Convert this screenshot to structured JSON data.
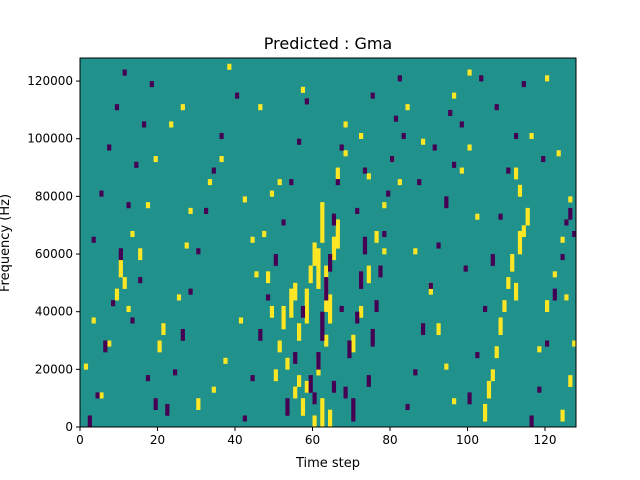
{
  "chart_data": {
    "type": "heatmap",
    "title": "Predicted : Gma",
    "xlabel": "Time step",
    "ylabel": "Frequency (Hz)",
    "xlim": [
      0,
      128
    ],
    "ylim": [
      0,
      128000
    ],
    "x_ticks": [
      0,
      20,
      40,
      60,
      80,
      100,
      120
    ],
    "y_ticks": [
      0,
      20000,
      40000,
      60000,
      80000,
      100000,
      120000
    ],
    "x_tick_labels": [
      "0",
      "20",
      "40",
      "60",
      "80",
      "100",
      "120"
    ],
    "y_tick_labels": [
      "0",
      "20000",
      "40000",
      "60000",
      "80000",
      "100000",
      "120000"
    ],
    "n_time": 128,
    "n_freq": 128,
    "grid": false,
    "colors": {
      "background": "#21918c",
      "high": "#fde725",
      "low": "#440154"
    },
    "notes_legend": "background cells = mid value; high cells = yellow; low cells = dark purple",
    "high_cells": [
      [
        60,
        0,
        4
      ],
      [
        62,
        0,
        10
      ],
      [
        64,
        0,
        6
      ],
      [
        55,
        10,
        4
      ],
      [
        56,
        14,
        4
      ],
      [
        57,
        4,
        6
      ],
      [
        58,
        12,
        4
      ],
      [
        61,
        18,
        6
      ],
      [
        63,
        28,
        4
      ],
      [
        52,
        34,
        8
      ],
      [
        53,
        20,
        4
      ],
      [
        54,
        38,
        10
      ],
      [
        55,
        44,
        6
      ],
      [
        56,
        30,
        6
      ],
      [
        58,
        36,
        12
      ],
      [
        59,
        50,
        6
      ],
      [
        60,
        56,
        8
      ],
      [
        61,
        48,
        14
      ],
      [
        62,
        64,
        14
      ],
      [
        63,
        40,
        16
      ],
      [
        64,
        36,
        10
      ],
      [
        65,
        58,
        8
      ],
      [
        66,
        62,
        10
      ],
      [
        50,
        16,
        4
      ],
      [
        51,
        26,
        4
      ],
      [
        49,
        38,
        4
      ],
      [
        48,
        50,
        4
      ],
      [
        104,
        2,
        6
      ],
      [
        105,
        10,
        6
      ],
      [
        106,
        16,
        4
      ],
      [
        107,
        24,
        4
      ],
      [
        108,
        32,
        6
      ],
      [
        109,
        40,
        4
      ],
      [
        110,
        48,
        4
      ],
      [
        111,
        54,
        6
      ],
      [
        112,
        44,
        6
      ],
      [
        113,
        60,
        8
      ],
      [
        114,
        66,
        4
      ],
      [
        115,
        70,
        6
      ],
      [
        113,
        80,
        4
      ],
      [
        112,
        86,
        4
      ],
      [
        10,
        52,
        6
      ],
      [
        11,
        48,
        4
      ],
      [
        12,
        40,
        2
      ],
      [
        20,
        26,
        4
      ],
      [
        21,
        32,
        4
      ],
      [
        25,
        44,
        2
      ],
      [
        27,
        62,
        2
      ],
      [
        28,
        74,
        2
      ],
      [
        30,
        6,
        4
      ],
      [
        34,
        12,
        2
      ],
      [
        37,
        22,
        2
      ],
      [
        41,
        36,
        2
      ],
      [
        45,
        52,
        2
      ],
      [
        47,
        66,
        2
      ],
      [
        49,
        80,
        2
      ],
      [
        51,
        84,
        2
      ],
      [
        70,
        26,
        6
      ],
      [
        72,
        38,
        4
      ],
      [
        74,
        50,
        6
      ],
      [
        76,
        64,
        4
      ],
      [
        78,
        76,
        2
      ],
      [
        80,
        92,
        2
      ],
      [
        82,
        84,
        2
      ],
      [
        86,
        60,
        2
      ],
      [
        90,
        46,
        4
      ],
      [
        92,
        32,
        4
      ],
      [
        94,
        20,
        2
      ],
      [
        96,
        8,
        2
      ],
      [
        98,
        88,
        2
      ],
      [
        100,
        96,
        2
      ],
      [
        102,
        72,
        2
      ],
      [
        118,
        26,
        2
      ],
      [
        120,
        40,
        4
      ],
      [
        122,
        52,
        2
      ],
      [
        124,
        64,
        2
      ],
      [
        126,
        78,
        2
      ],
      [
        5,
        10,
        2
      ],
      [
        7,
        28,
        2
      ],
      [
        9,
        44,
        4
      ],
      [
        15,
        58,
        4
      ],
      [
        17,
        76,
        2
      ],
      [
        19,
        92,
        2
      ],
      [
        23,
        104,
        2
      ],
      [
        26,
        110,
        2
      ],
      [
        38,
        124,
        2
      ],
      [
        46,
        110,
        2
      ],
      [
        57,
        116,
        2
      ],
      [
        68,
        104,
        2
      ],
      [
        72,
        100,
        2
      ],
      [
        84,
        110,
        2
      ],
      [
        88,
        98,
        2
      ],
      [
        96,
        114,
        2
      ],
      [
        100,
        122,
        2
      ],
      [
        116,
        100,
        2
      ],
      [
        120,
        120,
        2
      ],
      [
        124,
        2,
        4
      ],
      [
        126,
        14,
        4
      ],
      [
        127,
        28,
        2
      ],
      [
        125,
        44,
        2
      ],
      [
        123,
        94,
        2
      ],
      [
        3,
        36,
        2
      ],
      [
        1,
        20,
        2
      ],
      [
        13,
        66,
        2
      ],
      [
        33,
        84,
        2
      ],
      [
        36,
        92,
        2
      ],
      [
        42,
        78,
        2
      ],
      [
        44,
        64,
        2
      ],
      [
        66,
        86,
        4
      ],
      [
        68,
        94,
        2
      ],
      [
        74,
        86,
        2
      ],
      [
        78,
        60,
        2
      ]
    ],
    "low_cells": [
      [
        2,
        0,
        4
      ],
      [
        4,
        10,
        2
      ],
      [
        6,
        26,
        4
      ],
      [
        8,
        42,
        2
      ],
      [
        10,
        58,
        4
      ],
      [
        12,
        76,
        2
      ],
      [
        14,
        90,
        2
      ],
      [
        16,
        104,
        2
      ],
      [
        18,
        118,
        2
      ],
      [
        22,
        4,
        4
      ],
      [
        24,
        18,
        2
      ],
      [
        26,
        30,
        4
      ],
      [
        28,
        46,
        2
      ],
      [
        30,
        60,
        2
      ],
      [
        32,
        74,
        2
      ],
      [
        34,
        88,
        2
      ],
      [
        36,
        100,
        2
      ],
      [
        40,
        114,
        2
      ],
      [
        42,
        2,
        2
      ],
      [
        44,
        16,
        2
      ],
      [
        46,
        30,
        4
      ],
      [
        48,
        44,
        2
      ],
      [
        50,
        56,
        4
      ],
      [
        52,
        70,
        2
      ],
      [
        54,
        84,
        2
      ],
      [
        56,
        98,
        2
      ],
      [
        58,
        112,
        2
      ],
      [
        60,
        8,
        4
      ],
      [
        61,
        20,
        6
      ],
      [
        62,
        30,
        10
      ],
      [
        63,
        44,
        8
      ],
      [
        64,
        54,
        6
      ],
      [
        65,
        70,
        4
      ],
      [
        66,
        84,
        2
      ],
      [
        67,
        96,
        2
      ],
      [
        68,
        10,
        4
      ],
      [
        69,
        24,
        6
      ],
      [
        70,
        2,
        8
      ],
      [
        71,
        36,
        4
      ],
      [
        72,
        48,
        6
      ],
      [
        73,
        60,
        6
      ],
      [
        74,
        14,
        4
      ],
      [
        75,
        28,
        6
      ],
      [
        76,
        40,
        4
      ],
      [
        77,
        52,
        4
      ],
      [
        78,
        66,
        2
      ],
      [
        79,
        80,
        2
      ],
      [
        80,
        92,
        2
      ],
      [
        81,
        106,
        2
      ],
      [
        82,
        120,
        2
      ],
      [
        84,
        6,
        2
      ],
      [
        86,
        18,
        2
      ],
      [
        88,
        32,
        4
      ],
      [
        90,
        48,
        2
      ],
      [
        92,
        62,
        2
      ],
      [
        94,
        76,
        4
      ],
      [
        96,
        90,
        2
      ],
      [
        98,
        104,
        2
      ],
      [
        100,
        8,
        4
      ],
      [
        102,
        24,
        2
      ],
      [
        104,
        40,
        2
      ],
      [
        106,
        56,
        4
      ],
      [
        108,
        72,
        2
      ],
      [
        110,
        88,
        2
      ],
      [
        112,
        100,
        2
      ],
      [
        114,
        118,
        2
      ],
      [
        116,
        0,
        4
      ],
      [
        118,
        12,
        2
      ],
      [
        120,
        28,
        2
      ],
      [
        122,
        44,
        4
      ],
      [
        124,
        58,
        2
      ],
      [
        126,
        72,
        4
      ],
      [
        127,
        66,
        2
      ],
      [
        125,
        70,
        2
      ],
      [
        3,
        64,
        2
      ],
      [
        5,
        80,
        2
      ],
      [
        7,
        96,
        2
      ],
      [
        9,
        110,
        2
      ],
      [
        11,
        122,
        2
      ],
      [
        13,
        36,
        2
      ],
      [
        15,
        50,
        2
      ],
      [
        17,
        16,
        2
      ],
      [
        19,
        6,
        4
      ],
      [
        53,
        4,
        6
      ],
      [
        55,
        22,
        4
      ],
      [
        57,
        38,
        4
      ],
      [
        59,
        12,
        6
      ],
      [
        65,
        12,
        4
      ],
      [
        67,
        40,
        2
      ],
      [
        71,
        74,
        2
      ],
      [
        73,
        88,
        2
      ],
      [
        75,
        114,
        2
      ],
      [
        83,
        100,
        2
      ],
      [
        87,
        84,
        2
      ],
      [
        91,
        96,
        2
      ],
      [
        95,
        108,
        2
      ],
      [
        99,
        54,
        2
      ],
      [
        103,
        120,
        2
      ],
      [
        107,
        110,
        2
      ],
      [
        119,
        92,
        2
      ]
    ]
  }
}
